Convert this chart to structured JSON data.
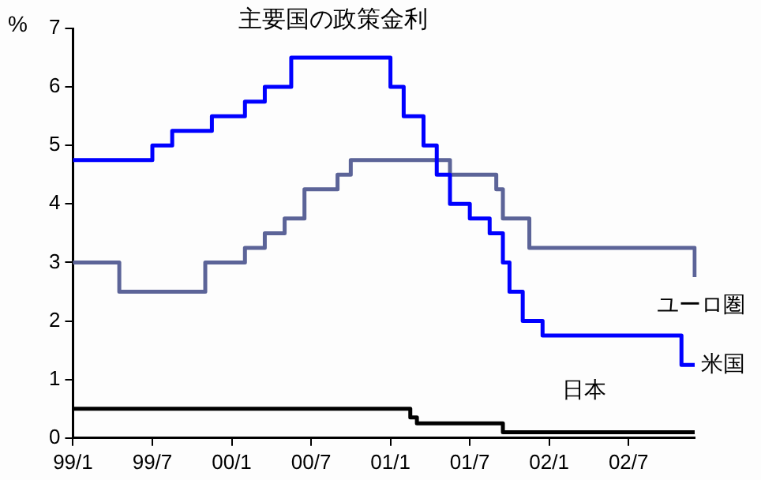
{
  "chart_data": {
    "type": "step",
    "title": "主要国の政策金利",
    "ylabel": "%",
    "categories": [
      "99/1",
      null,
      null,
      null,
      null,
      null,
      null,
      null,
      null,
      null,
      null,
      null,
      "99/7",
      null,
      null,
      null,
      null,
      null,
      null,
      null,
      null,
      null,
      null,
      null,
      "00/1",
      null,
      null,
      null,
      null,
      null,
      null,
      null,
      null,
      null,
      null,
      null,
      "00/7",
      null,
      null,
      null,
      null,
      null,
      null,
      null,
      null,
      null,
      null,
      null,
      "01/1",
      null,
      null,
      null,
      null,
      null,
      null,
      null,
      null,
      null,
      null,
      null,
      "01/7",
      null,
      null,
      null,
      null,
      null,
      null,
      null,
      null,
      null,
      null,
      null,
      "02/1",
      null,
      null,
      null,
      null,
      null,
      null,
      null,
      null,
      null,
      null,
      null,
      "02/7",
      null,
      null,
      null,
      null,
      null,
      null,
      null,
      null,
      null,
      null
    ],
    "ylim": [
      0,
      7
    ],
    "yticks": [
      0,
      1,
      2,
      3,
      4,
      5,
      6,
      7
    ],
    "grid": false,
    "legend": false,
    "marker": "none",
    "line_style": "solid",
    "series": [
      {
        "name": "米国",
        "color": "#0000ff",
        "values": [
          4.75,
          4.75,
          4.75,
          4.75,
          4.75,
          4.75,
          4.75,
          4.75,
          4.75,
          4.75,
          4.75,
          4.75,
          5.0,
          5.0,
          5.0,
          5.25,
          5.25,
          5.25,
          5.25,
          5.25,
          5.25,
          5.5,
          5.5,
          5.5,
          5.5,
          5.5,
          5.75,
          5.75,
          5.75,
          6.0,
          6.0,
          6.0,
          6.0,
          6.5,
          6.5,
          6.5,
          6.5,
          6.5,
          6.5,
          6.5,
          6.5,
          6.5,
          6.5,
          6.5,
          6.5,
          6.5,
          6.5,
          6.5,
          6.0,
          6.0,
          5.5,
          5.5,
          5.5,
          5.0,
          5.0,
          4.5,
          4.5,
          4.0,
          4.0,
          4.0,
          3.75,
          3.75,
          3.75,
          3.5,
          3.5,
          3.0,
          2.5,
          2.5,
          2.0,
          2.0,
          2.0,
          1.75,
          1.75,
          1.75,
          1.75,
          1.75,
          1.75,
          1.75,
          1.75,
          1.75,
          1.75,
          1.75,
          1.75,
          1.75,
          1.75,
          1.75,
          1.75,
          1.75,
          1.75,
          1.75,
          1.75,
          1.75,
          1.25,
          1.25,
          1.25
        ]
      },
      {
        "name": "ユーロ圏",
        "color": "#5c6498",
        "values": [
          3.0,
          3.0,
          3.0,
          3.0,
          3.0,
          3.0,
          3.0,
          2.5,
          2.5,
          2.5,
          2.5,
          2.5,
          2.5,
          2.5,
          2.5,
          2.5,
          2.5,
          2.5,
          2.5,
          2.5,
          3.0,
          3.0,
          3.0,
          3.0,
          3.0,
          3.0,
          3.25,
          3.25,
          3.25,
          3.5,
          3.5,
          3.5,
          3.75,
          3.75,
          3.75,
          4.25,
          4.25,
          4.25,
          4.25,
          4.25,
          4.5,
          4.5,
          4.75,
          4.75,
          4.75,
          4.75,
          4.75,
          4.75,
          4.75,
          4.75,
          4.75,
          4.75,
          4.75,
          4.75,
          4.75,
          4.75,
          4.75,
          4.5,
          4.5,
          4.5,
          4.5,
          4.5,
          4.5,
          4.5,
          4.25,
          3.75,
          3.75,
          3.75,
          3.75,
          3.25,
          3.25,
          3.25,
          3.25,
          3.25,
          3.25,
          3.25,
          3.25,
          3.25,
          3.25,
          3.25,
          3.25,
          3.25,
          3.25,
          3.25,
          3.25,
          3.25,
          3.25,
          3.25,
          3.25,
          3.25,
          3.25,
          3.25,
          3.25,
          3.25,
          2.75
        ]
      },
      {
        "name": "日本",
        "color": "#000000",
        "values": [
          0.5,
          0.5,
          0.5,
          0.5,
          0.5,
          0.5,
          0.5,
          0.5,
          0.5,
          0.5,
          0.5,
          0.5,
          0.5,
          0.5,
          0.5,
          0.5,
          0.5,
          0.5,
          0.5,
          0.5,
          0.5,
          0.5,
          0.5,
          0.5,
          0.5,
          0.5,
          0.5,
          0.5,
          0.5,
          0.5,
          0.5,
          0.5,
          0.5,
          0.5,
          0.5,
          0.5,
          0.5,
          0.5,
          0.5,
          0.5,
          0.5,
          0.5,
          0.5,
          0.5,
          0.5,
          0.5,
          0.5,
          0.5,
          0.5,
          0.5,
          0.5,
          0.35,
          0.25,
          0.25,
          0.25,
          0.25,
          0.25,
          0.25,
          0.25,
          0.25,
          0.25,
          0.25,
          0.25,
          0.25,
          0.25,
          0.1,
          0.1,
          0.1,
          0.1,
          0.1,
          0.1,
          0.1,
          0.1,
          0.1,
          0.1,
          0.1,
          0.1,
          0.1,
          0.1,
          0.1,
          0.1,
          0.1,
          0.1,
          0.1,
          0.1,
          0.1,
          0.1,
          0.1,
          0.1,
          0.1,
          0.1,
          0.1,
          0.1,
          0.1,
          0.1
        ]
      }
    ]
  }
}
